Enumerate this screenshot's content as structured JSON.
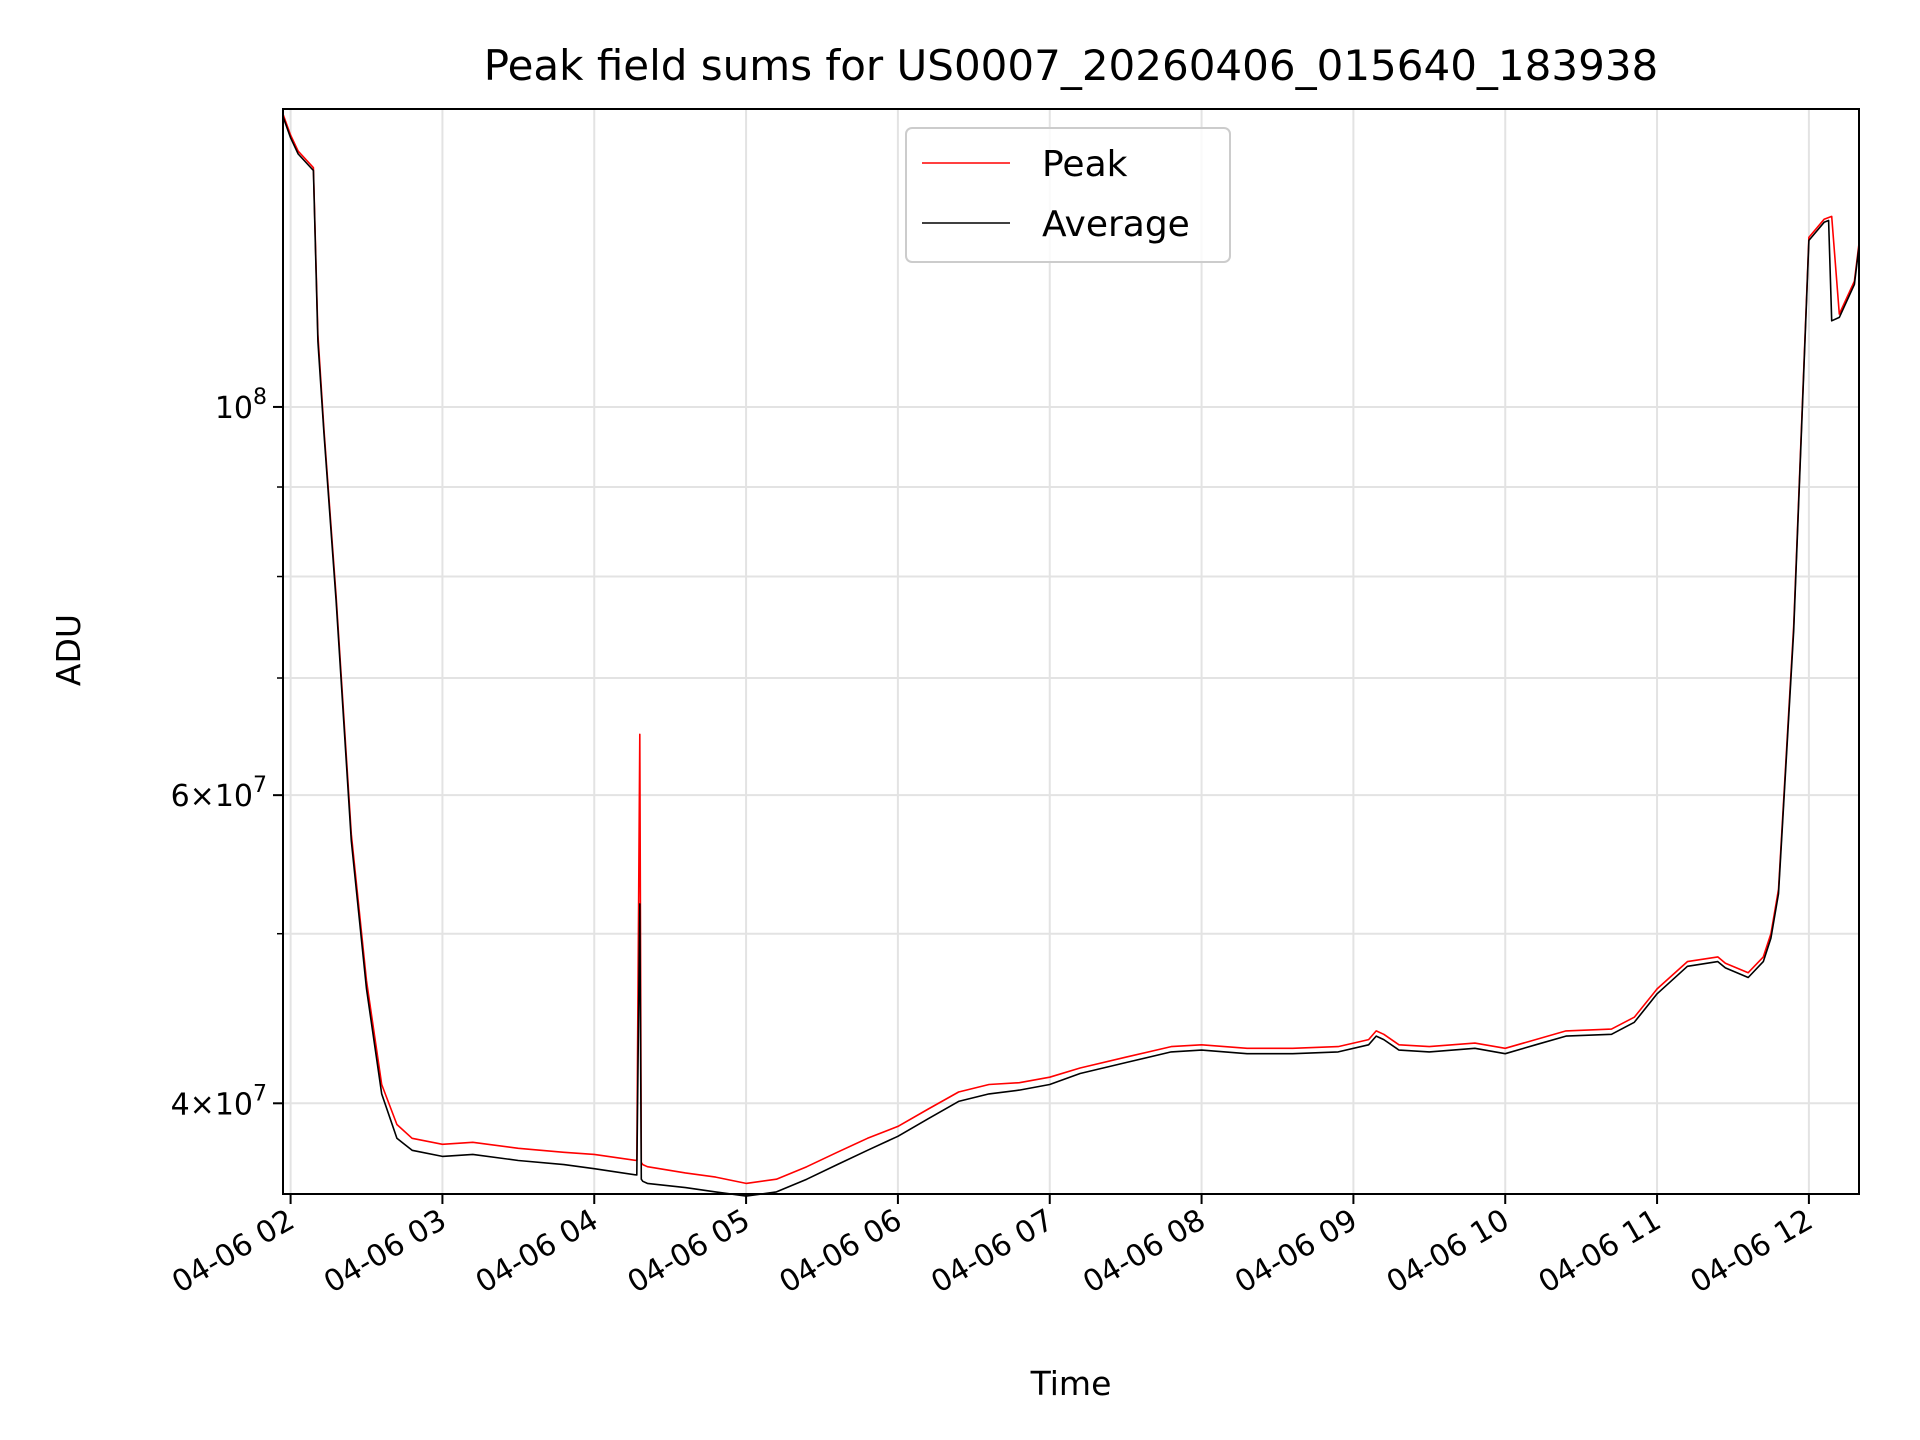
{
  "chart_data": {
    "type": "line",
    "title": "Peak field sums for US0007_20260406_015640_183938",
    "xlabel": "Time",
    "ylabel": "ADU",
    "x_unit": "hours on 2026-04-06",
    "xlim": [
      1.95,
      12.33
    ],
    "ylim": [
      35500000,
      148000000
    ],
    "yscale": "log",
    "grid": true,
    "legend_position": "top-center",
    "x_ticks": [
      {
        "value": 2,
        "label": "04-06 02"
      },
      {
        "value": 3,
        "label": "04-06 03"
      },
      {
        "value": 4,
        "label": "04-06 04"
      },
      {
        "value": 5,
        "label": "04-06 05"
      },
      {
        "value": 6,
        "label": "04-06 06"
      },
      {
        "value": 7,
        "label": "04-06 07"
      },
      {
        "value": 8,
        "label": "04-06 08"
      },
      {
        "value": 9,
        "label": "04-06 09"
      },
      {
        "value": 10,
        "label": "04-06 10"
      },
      {
        "value": 11,
        "label": "04-06 11"
      },
      {
        "value": 12,
        "label": "04-06 12"
      }
    ],
    "y_major_ticks": [
      {
        "value": 40000000,
        "base": "4×10",
        "exp": "7"
      },
      {
        "value": 60000000,
        "base": "6×10",
        "exp": "7"
      },
      {
        "value": 100000000,
        "base": "10",
        "exp": "8"
      }
    ],
    "y_minor_ticks": [
      50000000,
      70000000,
      80000000,
      90000000
    ],
    "series": [
      {
        "name": "Peak",
        "color": "#ff0000",
        "x": [
          1.95,
          2.0,
          2.05,
          2.15,
          2.18,
          2.22,
          2.3,
          2.4,
          2.5,
          2.6,
          2.7,
          2.8,
          3.0,
          3.2,
          3.5,
          3.8,
          4.0,
          4.28,
          4.3,
          4.31,
          4.32,
          4.35,
          4.6,
          4.8,
          5.0,
          5.2,
          5.4,
          5.6,
          5.8,
          6.0,
          6.2,
          6.4,
          6.6,
          6.8,
          7.0,
          7.2,
          7.5,
          7.8,
          8.0,
          8.3,
          8.6,
          8.9,
          9.1,
          9.15,
          9.2,
          9.3,
          9.5,
          9.8,
          10.0,
          10.2,
          10.4,
          10.7,
          10.85,
          11.0,
          11.2,
          11.4,
          11.45,
          11.6,
          11.7,
          11.75,
          11.8,
          11.9,
          12.0,
          12.1,
          12.15,
          12.2,
          12.3,
          12.33
        ],
        "values": [
          147000000,
          143000000,
          140000000,
          137000000,
          110000000,
          97000000,
          78000000,
          57000000,
          47000000,
          41000000,
          38900000,
          38200000,
          37900000,
          38000000,
          37700000,
          37500000,
          37400000,
          37100000,
          65000000,
          37000000,
          36900000,
          36800000,
          36500000,
          36300000,
          36000000,
          36200000,
          36800000,
          37500000,
          38200000,
          38800000,
          39700000,
          40600000,
          41000000,
          41100000,
          41400000,
          41900000,
          42500000,
          43100000,
          43200000,
          43000000,
          43000000,
          43100000,
          43500000,
          44000000,
          43800000,
          43200000,
          43100000,
          43300000,
          43000000,
          43500000,
          44000000,
          44100000,
          44800000,
          46500000,
          48200000,
          48500000,
          48100000,
          47500000,
          48500000,
          50000000,
          53000000,
          75000000,
          125000000,
          128000000,
          128500000,
          113000000,
          118000000,
          124000000
        ]
      },
      {
        "name": "Average",
        "color": "#000000",
        "x": [
          1.95,
          2.0,
          2.05,
          2.15,
          2.18,
          2.22,
          2.3,
          2.4,
          2.5,
          2.6,
          2.7,
          2.8,
          3.0,
          3.2,
          3.5,
          3.8,
          4.0,
          4.28,
          4.3,
          4.31,
          4.32,
          4.35,
          4.6,
          4.8,
          5.0,
          5.2,
          5.4,
          5.6,
          5.8,
          6.0,
          6.2,
          6.4,
          6.6,
          6.8,
          7.0,
          7.2,
          7.5,
          7.8,
          8.0,
          8.3,
          8.6,
          8.9,
          9.1,
          9.15,
          9.2,
          9.3,
          9.5,
          9.8,
          10.0,
          10.2,
          10.4,
          10.7,
          10.85,
          11.0,
          11.2,
          11.4,
          11.45,
          11.6,
          11.7,
          11.75,
          11.8,
          11.9,
          12.0,
          12.1,
          12.13,
          12.15,
          12.2,
          12.3,
          12.33
        ],
        "values": [
          146500000,
          142500000,
          139500000,
          136500000,
          109000000,
          96500000,
          77500000,
          56500000,
          46500000,
          40500000,
          38200000,
          37600000,
          37300000,
          37400000,
          37100000,
          36900000,
          36700000,
          36400000,
          52000000,
          36200000,
          36100000,
          36000000,
          35800000,
          35600000,
          35400000,
          35600000,
          36200000,
          36900000,
          37600000,
          38300000,
          39200000,
          40100000,
          40500000,
          40700000,
          41000000,
          41600000,
          42200000,
          42800000,
          42900000,
          42700000,
          42700000,
          42800000,
          43200000,
          43700000,
          43500000,
          42900000,
          42800000,
          43000000,
          42700000,
          43200000,
          43700000,
          43800000,
          44500000,
          46200000,
          47900000,
          48200000,
          47800000,
          47200000,
          48200000,
          49700000,
          52700000,
          74500000,
          124500000,
          127500000,
          127800000,
          112000000,
          112500000,
          117500000,
          123500000
        ]
      }
    ],
    "annotations": []
  }
}
